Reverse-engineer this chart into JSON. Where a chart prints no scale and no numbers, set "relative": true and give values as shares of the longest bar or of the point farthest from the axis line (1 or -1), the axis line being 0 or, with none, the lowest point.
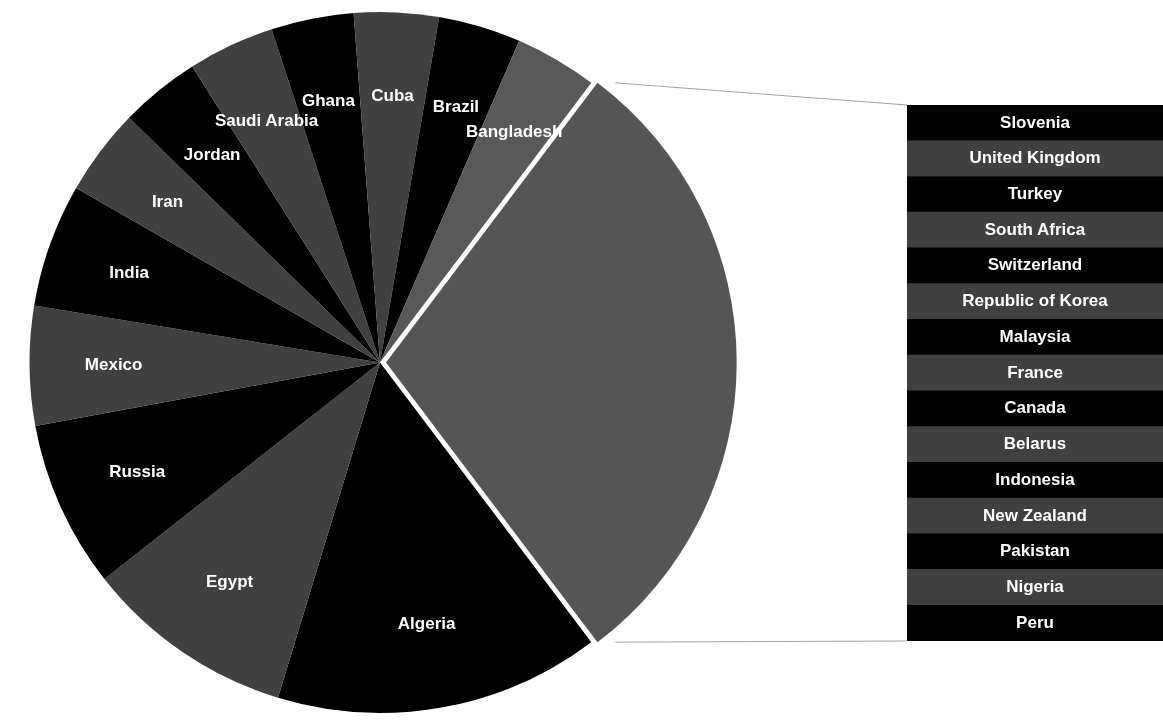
{
  "chart_data": [
    {
      "type": "pie",
      "categories": [
        "Algeria",
        "Egypt",
        "Russia",
        "Mexico",
        "India",
        "Iran",
        "Jordan",
        "Saudi Arabia",
        "Ghana",
        "Cuba",
        "Brazil",
        "Bangladesh",
        null
      ],
      "values": [
        15.0,
        9.7,
        7.7,
        5.5,
        5.7,
        4.0,
        3.7,
        4.0,
        3.8,
        3.9,
        3.8,
        3.8,
        29.4
      ],
      "colors": [
        "#000000",
        "#404040",
        "#000000",
        "#404040",
        "#000000",
        "#404040",
        "#000000",
        "#404040",
        "#000000",
        "#404040",
        "#000000",
        "#595959",
        "#555555"
      ],
      "legend": false
    },
    {
      "type": "bar",
      "orientation": "horizontal",
      "relative": true,
      "legend": false,
      "categories": [
        "Slovenia",
        "United Kingdom",
        "Turkey",
        "South Africa",
        "Switzerland",
        "Republic of Korea",
        "Malaysia",
        "France",
        "Canada",
        "Belarus",
        "Indonesia",
        "New Zealand",
        "Pakistan",
        "Nigeria",
        "Peru"
      ],
      "values": [
        1,
        1,
        1,
        1,
        1,
        1,
        1,
        1,
        1,
        1,
        1,
        1,
        1,
        1,
        1
      ],
      "colors": [
        "#000000",
        "#404040",
        "#000000",
        "#404040",
        "#000000",
        "#404040",
        "#000000",
        "#404040",
        "#000000",
        "#404040",
        "#000000",
        "#404040",
        "#000000",
        "#404040",
        "#000000"
      ]
    }
  ]
}
